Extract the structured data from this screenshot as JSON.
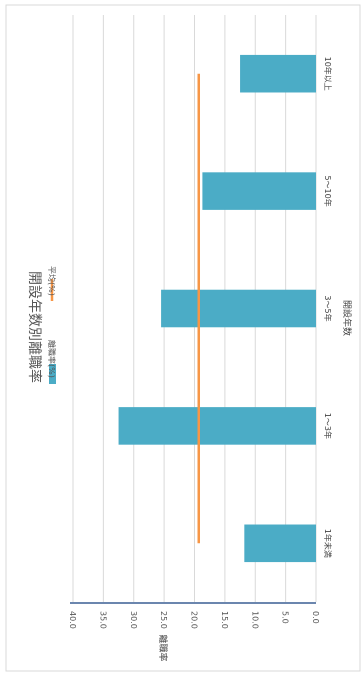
{
  "chart_data": {
    "type": "bar",
    "title": "開設年数別離職率",
    "xlabel": "開設年数",
    "ylabel": "離職率",
    "categories": [
      "1年未満",
      "1～3年",
      "3～5年",
      "5～10年",
      "10年以上"
    ],
    "series": [
      {
        "name": "離職率(%)",
        "type": "bar",
        "color": "#4bacc6",
        "values": [
          11.8,
          32.5,
          25.5,
          18.7,
          12.5
        ]
      },
      {
        "name": "平均(%)",
        "type": "line",
        "color": "#f79646",
        "values": [
          19.3,
          19.3,
          19.3,
          19.3,
          19.3
        ]
      }
    ],
    "ylim": [
      0,
      40
    ],
    "yticks": [
      "0.0",
      "5.0",
      "10.0",
      "15.0",
      "20.0",
      "25.0",
      "30.0",
      "35.0",
      "40.0"
    ],
    "grid": true,
    "orientation": "rotated 90° clockwise",
    "legend": "left of plot area"
  }
}
